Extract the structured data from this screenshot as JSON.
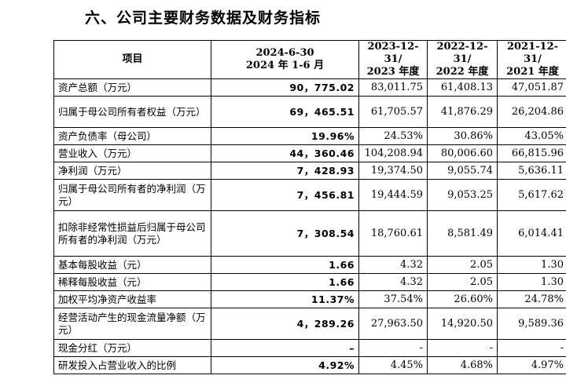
{
  "section_title": "六、公司主要财务数据及财务指标",
  "header": {
    "item": "项目",
    "col1_line1": "2024-6-30",
    "col1_line2": "2024 年 1-6 月",
    "col2_line1": "2023-12-31/",
    "col2_line2": "2023 年度",
    "col3_line1": "2022-12-31/",
    "col3_line2": "2022 年度",
    "col4_line1": "2021-12-31/",
    "col4_line2": "2021 年度"
  },
  "rows": [
    {
      "label": "资产总额（万元）",
      "v1": "90，775.02",
      "v2": "83,011.75",
      "v3": "61,408.13",
      "v4": "47,051.87"
    },
    {
      "label": "归属于母公司所有者权益（万元）",
      "v1": "69，465.51",
      "v2": "61,705.57",
      "v3": "41,876.29",
      "v4": "26,204.86"
    },
    {
      "label": "资产负债率（母公司）",
      "v1": "19.96%",
      "v2": "24.53%",
      "v3": "30.86%",
      "v4": "43.05%"
    },
    {
      "label": "营业收入（万元）",
      "v1": "44，360.46",
      "v2": "104,208.94",
      "v3": "80,006.60",
      "v4": "66,815.96"
    },
    {
      "label": "净利润（万元）",
      "v1": "7，428.93",
      "v2": "19,374.50",
      "v3": "9,055.74",
      "v4": "5,636.11"
    },
    {
      "label": "归属于母公司所有者的净利润（万元）",
      "v1": "7，456.81",
      "v2": "19,444.59",
      "v3": "9,053.25",
      "v4": "5,617.62"
    },
    {
      "label": "扣除非经常性损益后归属于母公司所有者的净利润（万元）",
      "v1": "7，308.54",
      "v2": "18,760.61",
      "v3": "8,581.49",
      "v4": "6,014.41"
    },
    {
      "label": "基本每股收益（元）",
      "v1": "1.66",
      "v2": "4.32",
      "v3": "2.05",
      "v4": "1.30"
    },
    {
      "label": "稀释每股收益（元）",
      "v1": "1.66",
      "v2": "4.32",
      "v3": "2.05",
      "v4": "1.30"
    },
    {
      "label": "加权平均净资产收益率",
      "v1": "11.37%",
      "v2": "37.54%",
      "v3": "26.60%",
      "v4": "24.78%"
    },
    {
      "label": "经营活动产生的现金流量净额（万元）",
      "v1": "4，289.26",
      "v2": "27,963.50",
      "v3": "14,920.50",
      "v4": "9,589.36"
    },
    {
      "label": "现金分红（万元）",
      "v1": "–",
      "v2": "-",
      "v3": "-",
      "v4": "-"
    },
    {
      "label": "研发投入占营业收入的比例",
      "v1": "4.92%",
      "v2": "4.45%",
      "v3": "4.68%",
      "v4": "4.97%"
    }
  ]
}
